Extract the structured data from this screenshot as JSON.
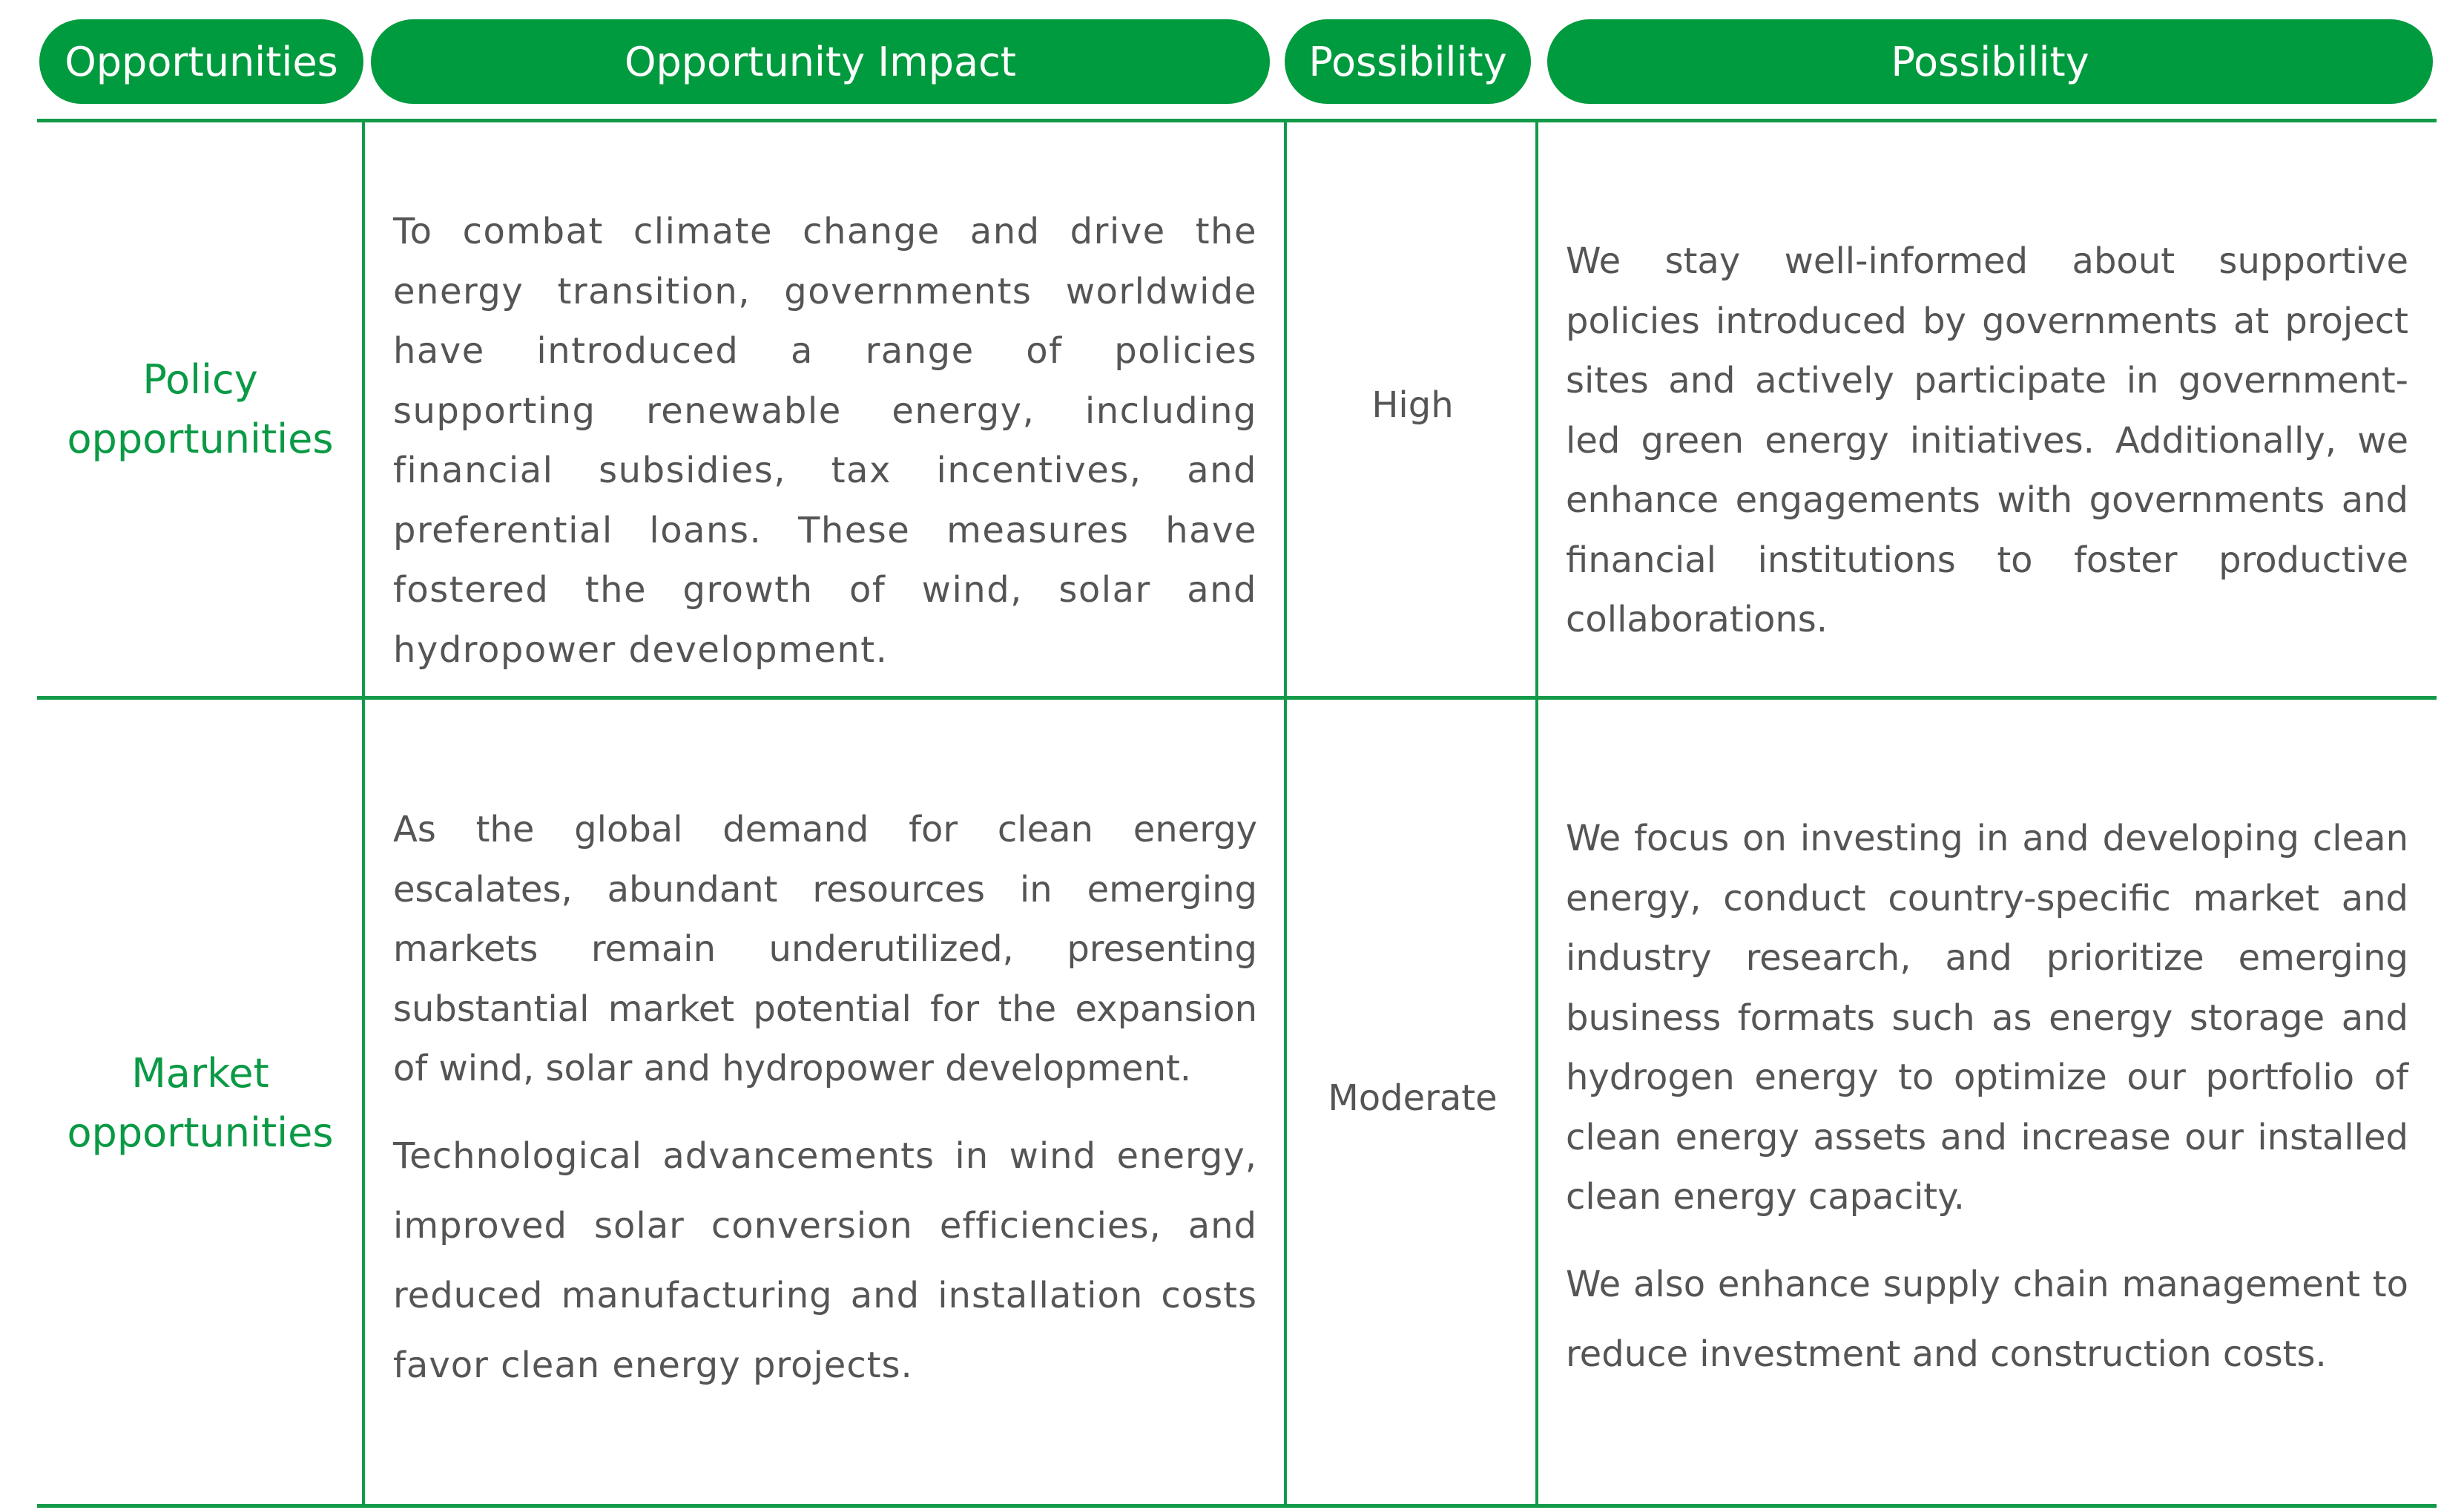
{
  "header": {
    "columns": [
      "Opportunities",
      "Opportunity Impact",
      "Possibility",
      "Possibility"
    ]
  },
  "colors": {
    "accent": "#009b3e",
    "text": "#555555"
  },
  "rows": [
    {
      "category": "Policy opportunities",
      "impact": [
        "To combat climate change and drive the energy transition, governments worldwide have introduced a range of policies supporting renewable energy, including financial subsidies, tax incentives, and preferential loans. These measures have fostered the growth of wind, solar and hydropower development."
      ],
      "possibility": "High",
      "response": [
        "We stay well-informed about supportive policies introduced by governments at project sites and actively participate in government-led green energy initiatives. Additionally, we enhance engagements with governments and financial institutions to foster productive collaborations."
      ]
    },
    {
      "category": "Market opportunities",
      "impact": [
        "As the global demand for clean energy escalates, abundant resources in emerging markets remain underutilized, presenting substantial market potential for the expansion of wind, solar and hydropower development.",
        "Technological advancements in wind energy, improved solar conversion efficiencies, and reduced manufacturing and installation costs favor clean energy projects."
      ],
      "possibility": "Moderate",
      "response": [
        "We focus on investing in and developing clean energy, conduct country-specific market and industry research, and prioritize emerging business formats such as energy storage and hydrogen energy to  optimize our portfolio of clean energy assets and increase our installed clean energy capacity.",
        "We also enhance supply chain management to reduce investment and construction costs."
      ]
    }
  ]
}
